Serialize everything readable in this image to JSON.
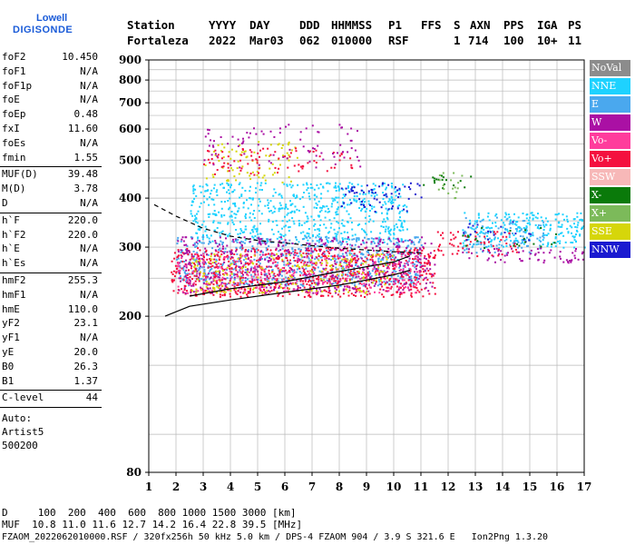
{
  "logo": {
    "top": "Lowell",
    "bottom": "DIGISONDE"
  },
  "header": {
    "labels": [
      "Station",
      "YYYY",
      "DAY",
      "DDD",
      "HHMMSS",
      "P1",
      "FFS",
      "S",
      "AXN",
      "PPS",
      "IGA",
      "PS"
    ],
    "values": [
      "Fortaleza",
      "2022",
      "Mar03",
      "062",
      "010000",
      "RSF",
      "1",
      "714",
      "100",
      "10+",
      "11"
    ]
  },
  "params": {
    "group1": [
      {
        "name": "foF2",
        "value": "10.450"
      },
      {
        "name": "foF1",
        "value": "N/A"
      },
      {
        "name": "foF1p",
        "value": "N/A"
      },
      {
        "name": "foE",
        "value": "N/A"
      },
      {
        "name": "foEp",
        "value": "0.48"
      },
      {
        "name": "fxI",
        "value": "11.60"
      },
      {
        "name": "foEs",
        "value": "N/A"
      },
      {
        "name": "fmin",
        "value": "1.55"
      }
    ],
    "group2": [
      {
        "name": "MUF(D)",
        "value": "39.48"
      },
      {
        "name": "M(D)",
        "value": "3.78"
      },
      {
        "name": "D",
        "value": "N/A"
      }
    ],
    "group3": [
      {
        "name": "h`F",
        "value": "220.0"
      },
      {
        "name": "h`F2",
        "value": "220.0"
      },
      {
        "name": "h`E",
        "value": "N/A"
      },
      {
        "name": "h`Es",
        "value": "N/A"
      }
    ],
    "group4": [
      {
        "name": "hmF2",
        "value": "255.3"
      },
      {
        "name": "hmF1",
        "value": "N/A"
      },
      {
        "name": "hmE",
        "value": "110.0"
      },
      {
        "name": "yF2",
        "value": "23.1"
      },
      {
        "name": "yF1",
        "value": "N/A"
      },
      {
        "name": "yE",
        "value": "20.0"
      },
      {
        "name": "B0",
        "value": "26.3"
      },
      {
        "name": "B1",
        "value": "1.37"
      }
    ],
    "group5": [
      {
        "name": "C-level",
        "value": "44"
      }
    ],
    "auto": [
      "Auto:",
      "Artist5",
      "500200"
    ]
  },
  "legend": [
    {
      "label": "NoVal",
      "color": "#8c8c8c"
    },
    {
      "label": "NNE",
      "color": "#1ed2ff"
    },
    {
      "label": "E",
      "color": "#4aa8ee"
    },
    {
      "label": "W",
      "color": "#aa10a4"
    },
    {
      "label": "Vo-",
      "color": "#ff3c9c"
    },
    {
      "label": "Vo+",
      "color": "#f4103e"
    },
    {
      "label": "SSW",
      "color": "#f7b8b8"
    },
    {
      "label": "X-",
      "color": "#0a7a0a"
    },
    {
      "label": "X+",
      "color": "#7cba5a"
    },
    {
      "label": "SSE",
      "color": "#d6d60a"
    },
    {
      "label": "NNW",
      "color": "#1a1ad0"
    }
  ],
  "chart_data": {
    "type": "scatter",
    "title": "",
    "xlabel": "",
    "ylabel": "",
    "xlim": [
      1,
      17
    ],
    "ylim": [
      80,
      900
    ],
    "y_scale": "log",
    "x_ticks": [
      1,
      2,
      3,
      4,
      5,
      6,
      7,
      8,
      9,
      10,
      11,
      12,
      13,
      14,
      15,
      16,
      17
    ],
    "y_ticks": [
      80,
      200,
      300,
      400,
      500,
      600,
      700,
      800,
      900
    ],
    "grid": true,
    "regions": [
      {
        "name": "NNE",
        "x": [
          2.5,
          10.5
        ],
        "y": [
          310,
          440
        ],
        "density": 0.5
      },
      {
        "name": "E",
        "x": [
          2.0,
          11.0
        ],
        "y": [
          240,
          320
        ],
        "density": 0.6
      },
      {
        "name": "Vo+",
        "x": [
          1.8,
          11.5
        ],
        "y": [
          225,
          300
        ],
        "density": 0.6
      },
      {
        "name": "W",
        "x": [
          2.0,
          11.5
        ],
        "y": [
          230,
          320
        ],
        "density": 0.35
      },
      {
        "name": "Vo-",
        "x": [
          2.0,
          11.0
        ],
        "y": [
          230,
          290
        ],
        "density": 0.25
      },
      {
        "name": "SSE",
        "x": [
          2.5,
          10.0
        ],
        "y": [
          230,
          290
        ],
        "density": 0.25
      },
      {
        "name": "SSE",
        "x": [
          3.0,
          6.5
        ],
        "y": [
          440,
          560
        ],
        "density": 0.2
      },
      {
        "name": "Vo+",
        "x": [
          3.0,
          8.5
        ],
        "y": [
          460,
          540
        ],
        "density": 0.2
      },
      {
        "name": "W",
        "x": [
          3.0,
          9.0
        ],
        "y": [
          480,
          620
        ],
        "density": 0.12
      },
      {
        "name": "NNW",
        "x": [
          8.0,
          11.0
        ],
        "y": [
          370,
          440
        ],
        "density": 0.25
      },
      {
        "name": "X-",
        "x": [
          11.0,
          13.0
        ],
        "y": [
          420,
          460
        ],
        "density": 0.2
      },
      {
        "name": "X+",
        "x": [
          11.0,
          12.5
        ],
        "y": [
          400,
          470
        ],
        "density": 0.15
      },
      {
        "name": "NNE",
        "x": [
          12.5,
          17.0
        ],
        "y": [
          300,
          370
        ],
        "density": 0.55
      },
      {
        "name": "E",
        "x": [
          12.5,
          15.5
        ],
        "y": [
          290,
          360
        ],
        "density": 0.3
      },
      {
        "name": "W",
        "x": [
          12.5,
          17.0
        ],
        "y": [
          275,
          300
        ],
        "density": 0.35
      },
      {
        "name": "Vo+",
        "x": [
          11.5,
          14.5
        ],
        "y": [
          285,
          330
        ],
        "density": 0.3
      },
      {
        "name": "NNW",
        "x": [
          12.5,
          15.0
        ],
        "y": [
          310,
          350
        ],
        "density": 0.15
      },
      {
        "name": "X-",
        "x": [
          12.5,
          17.0
        ],
        "y": [
          300,
          340
        ],
        "density": 0.08
      }
    ],
    "curves": [
      {
        "name": "lower-trace",
        "x": [
          1.6,
          2.5,
          4,
          6,
          8,
          10,
          10.6
        ],
        "y": [
          200,
          212,
          220,
          230,
          240,
          255,
          262
        ]
      },
      {
        "name": "upper-trace",
        "x": [
          2.5,
          4,
          6,
          8,
          10,
          10.6
        ],
        "y": [
          225,
          235,
          245,
          260,
          275,
          285
        ]
      },
      {
        "name": "dashed-trace",
        "x": [
          1.2,
          2,
          3,
          4,
          5,
          6.5,
          8,
          10,
          11
        ],
        "y": [
          385,
          360,
          335,
          320,
          312,
          305,
          298,
          292,
          290
        ]
      }
    ]
  },
  "bottom": {
    "line1": "D     100  200  400  600  800 1000 1500 3000 [km]",
    "line2": "MUF  10.8 11.0 11.6 12.7 14.2 16.4 22.8 39.5 [MHz]",
    "line3": "FZAOM_2022062010000.RSF / 320fx256h 50 kHz 5.0 km / DPS-4 FZAOM 904 / 3.9 S 321.6 E   Ion2Png 1.3.20"
  }
}
